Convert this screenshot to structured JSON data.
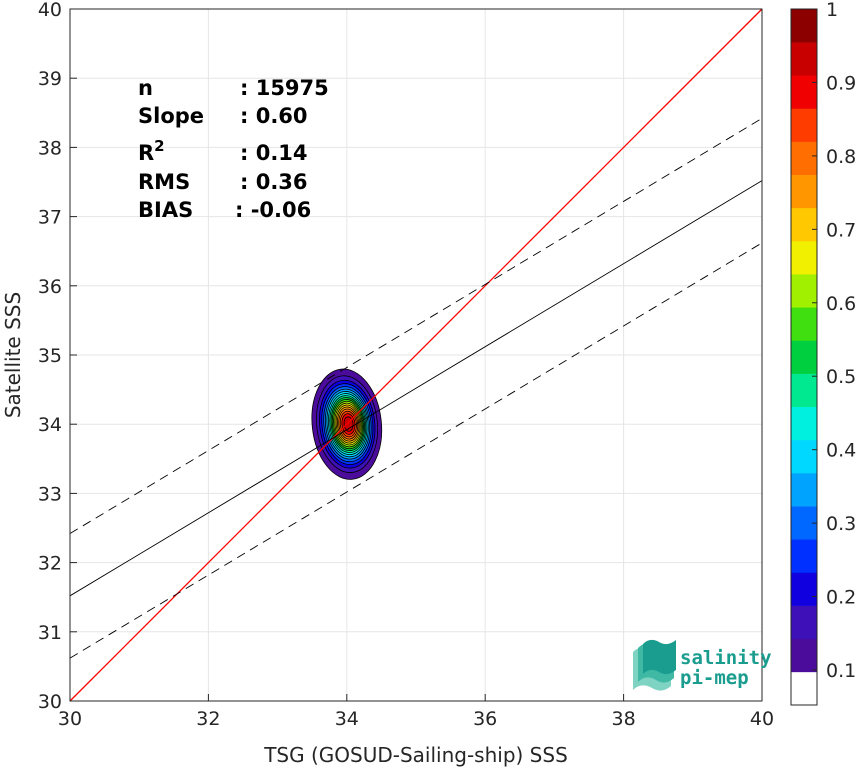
{
  "chart_data": {
    "type": "scatter",
    "subtype": "density-contour",
    "xlabel": "TSG (GOSUD-Sailing-ship) SSS",
    "ylabel": "Satellite SSS",
    "xlim": [
      30,
      40
    ],
    "ylim": [
      30,
      40
    ],
    "xticks": [
      "30",
      "32",
      "34",
      "36",
      "38",
      "40"
    ],
    "yticks": [
      "30",
      "31",
      "32",
      "33",
      "34",
      "35",
      "36",
      "37",
      "38",
      "39",
      "40"
    ],
    "grid": true,
    "density_center": {
      "x": 34.0,
      "y": 34.0
    },
    "density_spread": {
      "x": 0.5,
      "y": 0.8
    },
    "lines": [
      {
        "name": "identity",
        "color": "#ff0000",
        "style": "solid",
        "x": [
          30,
          40
        ],
        "y": [
          30,
          40
        ]
      },
      {
        "name": "fit",
        "color": "#000000",
        "style": "solid",
        "x": [
          30,
          40
        ],
        "y": [
          31.52,
          37.52
        ]
      },
      {
        "name": "fit-upper",
        "color": "#000000",
        "style": "dashed",
        "x": [
          30,
          40
        ],
        "y": [
          32.42,
          38.42
        ]
      },
      {
        "name": "fit-lower",
        "color": "#000000",
        "style": "dashed",
        "x": [
          30,
          40
        ],
        "y": [
          30.62,
          36.62
        ]
      }
    ],
    "stats": [
      {
        "label": "n",
        "sup": "",
        "value": ": 15975"
      },
      {
        "label": "Slope",
        "sup": "",
        "value": ": 0.60"
      },
      {
        "label": "R",
        "sup": "2",
        "value": ": 0.14"
      },
      {
        "label": "RMS",
        "sup": "",
        "value": ": 0.36"
      },
      {
        "label": "BIAS",
        "sup": "",
        "value": ": -0.06"
      }
    ],
    "colorbar": {
      "range": [
        0,
        1
      ],
      "ticks": [
        "0.1",
        "0.2",
        "0.3",
        "0.4",
        "0.5",
        "0.6",
        "0.7",
        "0.8",
        "0.9",
        "1"
      ],
      "colors": [
        "#ffffff",
        "#4b0c9c",
        "#3d10b8",
        "#1000e0",
        "#0030ff",
        "#0068ff",
        "#00a4ff",
        "#00d8ff",
        "#00f0e0",
        "#00e890",
        "#00d040",
        "#40e010",
        "#a0f000",
        "#f0f000",
        "#ffc800",
        "#ff9600",
        "#ff6e00",
        "#ff3c00",
        "#f00000",
        "#c80000",
        "#8c0000"
      ]
    }
  },
  "logo": {
    "line1": "salinity",
    "line2": "pi-mep"
  },
  "colors": {
    "identity": "#ff0000",
    "fit": "#000000",
    "grid": "#e6e6e6",
    "axis": "#262626",
    "logo": "#1a9c8e"
  }
}
